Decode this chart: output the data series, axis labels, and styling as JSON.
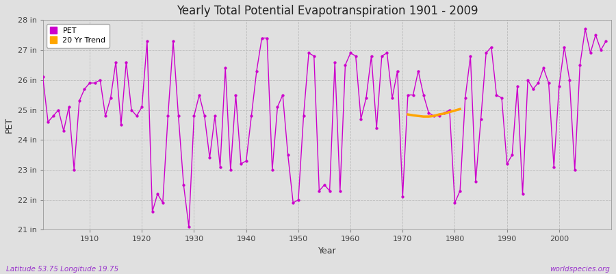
{
  "title": "Yearly Total Potential Evapotranspiration 1901 - 2009",
  "xlabel": "Year",
  "ylabel": "PET",
  "subtitle_left": "Latitude 53.75 Longitude 19.75",
  "subtitle_right": "worldspecies.org",
  "pet_color": "#cc00cc",
  "trend_color": "#ffa500",
  "background_color": "#e0e0e0",
  "plot_bg_color": "#e0e0e0",
  "ylim": [
    21,
    28
  ],
  "yticks": [
    21,
    22,
    23,
    24,
    25,
    26,
    27,
    28
  ],
  "ytick_labels": [
    "21 in",
    "22 in",
    "23 in",
    "24 in",
    "25 in",
    "26 in",
    "27 in",
    "28 in"
  ],
  "years": [
    1901,
    1902,
    1903,
    1904,
    1905,
    1906,
    1907,
    1908,
    1909,
    1910,
    1911,
    1912,
    1913,
    1914,
    1915,
    1916,
    1917,
    1918,
    1919,
    1920,
    1921,
    1922,
    1923,
    1924,
    1925,
    1926,
    1927,
    1928,
    1929,
    1930,
    1931,
    1932,
    1933,
    1934,
    1935,
    1936,
    1937,
    1938,
    1939,
    1940,
    1941,
    1942,
    1943,
    1944,
    1945,
    1946,
    1947,
    1948,
    1949,
    1950,
    1951,
    1952,
    1953,
    1954,
    1955,
    1956,
    1957,
    1958,
    1959,
    1960,
    1961,
    1962,
    1963,
    1964,
    1965,
    1966,
    1967,
    1968,
    1969,
    1970,
    1971,
    1972,
    1973,
    1974,
    1975,
    1976,
    1977,
    1978,
    1979,
    1980,
    1981,
    1982,
    1983,
    1984,
    1985,
    1986,
    1987,
    1988,
    1989,
    1990,
    1991,
    1992,
    1993,
    1994,
    1995,
    1996,
    1997,
    1998,
    1999,
    2000,
    2001,
    2002,
    2003,
    2004,
    2005,
    2006,
    2007,
    2008,
    2009
  ],
  "pet_values": [
    26.1,
    24.6,
    24.8,
    25.0,
    24.3,
    25.1,
    23.0,
    25.3,
    25.7,
    25.9,
    25.9,
    26.0,
    24.8,
    25.4,
    26.6,
    24.5,
    26.6,
    25.0,
    24.8,
    25.1,
    27.3,
    21.6,
    22.2,
    21.9,
    24.8,
    27.3,
    24.8,
    22.5,
    21.1,
    24.8,
    25.5,
    24.8,
    23.4,
    24.8,
    23.1,
    26.4,
    23.0,
    25.5,
    23.2,
    23.3,
    24.8,
    26.3,
    27.4,
    27.4,
    23.0,
    25.1,
    25.5,
    23.5,
    21.9,
    22.0,
    24.8,
    26.9,
    26.8,
    22.3,
    22.5,
    22.3,
    26.6,
    22.3,
    26.5,
    26.9,
    26.8,
    24.7,
    25.4,
    26.8,
    24.4,
    26.8,
    26.9,
    25.4,
    26.3,
    22.1,
    25.5,
    25.5,
    26.3,
    25.5,
    24.9,
    24.8,
    24.8,
    24.9,
    25.0,
    21.9,
    22.3,
    25.4,
    26.8,
    22.6,
    24.7,
    26.9,
    27.1,
    25.5,
    25.4,
    23.2,
    23.5,
    25.8,
    22.2,
    26.0,
    25.7,
    25.9,
    26.4,
    25.9,
    23.1,
    25.8,
    27.1,
    26.0,
    23.0,
    26.5,
    27.7,
    26.9,
    27.5,
    27.0,
    27.3
  ],
  "trend_years": [
    1971,
    1972,
    1973,
    1974,
    1975,
    1976,
    1977,
    1978,
    1979,
    1980,
    1981
  ],
  "trend_values": [
    24.85,
    24.82,
    24.8,
    24.78,
    24.78,
    24.8,
    24.85,
    24.88,
    24.93,
    24.98,
    25.03
  ],
  "figwidth": 9.0,
  "figheight": 4.0,
  "dpi": 100
}
